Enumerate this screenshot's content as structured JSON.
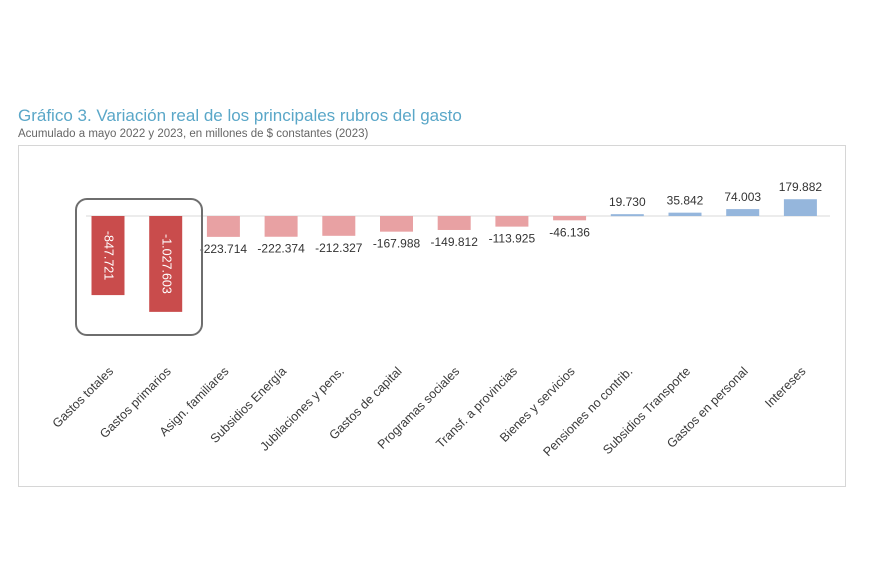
{
  "chart_data": {
    "type": "bar",
    "title": "Gráfico 3. Variación real de los principales rubros del gasto",
    "subtitle": "Acumulado a mayo 2022 y 2023, en millones de $ constantes (2023)",
    "categories": [
      "Gastos totales",
      "Gastos primarios",
      "Asign. familiares",
      "Subsidios Energía",
      "Jubilaciones y pens.",
      "Gastos de capital",
      "Programas sociales",
      "Transf. a provincias",
      "Bienes y servicios",
      "Pensiones no contrib.",
      "Subsidios Transporte",
      "Gastos en personal",
      "Intereses"
    ],
    "values": [
      -847721,
      -1027603,
      -223714,
      -222374,
      -212327,
      -167988,
      -149812,
      -113925,
      -46136,
      19730,
      35842,
      74003,
      179882
    ],
    "value_labels": [
      "-847.721",
      "-1.027.603",
      "-223.714",
      "-222.374",
      "-212.327",
      "-167.988",
      "-149.812",
      "-113.925",
      "-46.136",
      "19.730",
      "35.842",
      "74.003",
      "179.882"
    ],
    "ylim": [
      -1100000,
      500000
    ],
    "xlabel": "",
    "ylabel": "",
    "grid": false,
    "legend": "none",
    "colors": {
      "total_bar": "#c94c4c",
      "negative_bar": "#e8a1a3",
      "positive_bar": "#95b6dc",
      "highlight_box": "#6e6e6e",
      "title": "#5aa7c8"
    }
  }
}
